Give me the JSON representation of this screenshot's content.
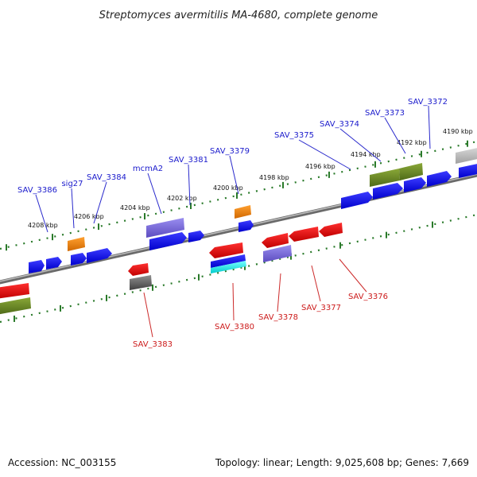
{
  "title": "Streptomyces avermitilis MA-4680, complete genome",
  "footer": {
    "accession": "Accession: NC_003155",
    "summary": "Topology: linear; Length: 9,025,608 bp; Genes: 7,669"
  },
  "colors": {
    "forward_label": "#1a1acc",
    "reverse_label": "#cc1a1a",
    "tick": "#2a7a2a",
    "backbone": "#8a8a8a"
  },
  "scale_labels": [
    "4190 kbp",
    "4192 kbp",
    "4194 kbp",
    "4196 kbp",
    "4198 kbp",
    "4200 kbp",
    "4202 kbp",
    "4204 kbp",
    "4206 kbp",
    "4208 kbp"
  ],
  "forward_labels": [
    "SAV_3386",
    "sig27",
    "SAV_3384",
    "mcmA2",
    "SAV_3381",
    "SAV_3379",
    "SAV_3375",
    "SAV_3374",
    "SAV_3373",
    "SAV_3372"
  ],
  "reverse_labels": [
    "SAV_3383",
    "SAV_3380",
    "SAV_3378",
    "SAV_3377",
    "SAV_3376"
  ]
}
